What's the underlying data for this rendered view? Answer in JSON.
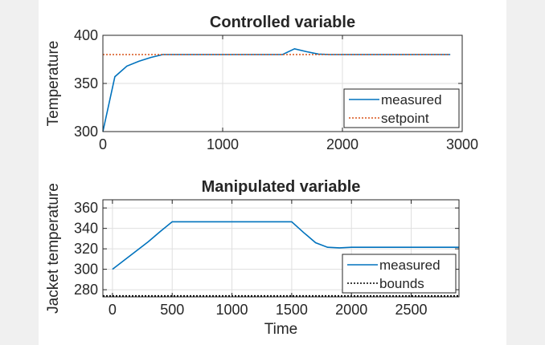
{
  "chart_data": [
    {
      "type": "line",
      "title": "Controlled variable",
      "xlabel": "",
      "ylabel": "Temperature",
      "xlim": [
        0,
        3000
      ],
      "ylim": [
        300,
        400
      ],
      "xticks": [
        0,
        1000,
        2000,
        3000
      ],
      "yticks": [
        300,
        350,
        400
      ],
      "grid": true,
      "legend_position": "bottom-right",
      "series": [
        {
          "name": "measured",
          "color": "#0072BD",
          "style": "solid",
          "x": [
            0,
            100,
            200,
            300,
            400,
            500,
            600,
            800,
            1000,
            1200,
            1400,
            1500,
            1600,
            1700,
            1800,
            1900,
            2000,
            2200,
            2400,
            2600,
            2900
          ],
          "y": [
            300,
            357,
            368,
            373,
            377,
            380,
            380,
            380,
            380,
            380,
            380,
            380,
            386,
            383,
            380.5,
            380,
            380,
            380,
            380,
            380,
            380
          ]
        },
        {
          "name": "setpoint",
          "color": "#D95319",
          "style": "dotted",
          "x": [
            0,
            2900
          ],
          "y": [
            380,
            380
          ]
        }
      ]
    },
    {
      "type": "line",
      "title": "Manipulated variable",
      "xlabel": "Time",
      "ylabel": "Jacket temperature",
      "xlim": [
        -80,
        2900
      ],
      "ylim": [
        273,
        368
      ],
      "xticks": [
        0,
        500,
        1000,
        1500,
        2000,
        2500
      ],
      "yticks": [
        280,
        300,
        320,
        340,
        360
      ],
      "grid": true,
      "legend_position": "bottom-right",
      "series": [
        {
          "name": "measured",
          "color": "#0072BD",
          "style": "solid",
          "x": [
            0,
            100,
            200,
            300,
            400,
            500,
            1000,
            1500,
            1600,
            1700,
            1800,
            1900,
            2000,
            2500,
            2900
          ],
          "y": [
            300,
            309,
            318,
            327,
            337,
            346.5,
            346.5,
            346.5,
            336,
            326,
            321.5,
            321,
            321.5,
            321.5,
            321.5
          ]
        },
        {
          "name": "bounds",
          "color": "#000000",
          "style": "dotted",
          "x": [
            -80,
            2900
          ],
          "y": [
            274,
            274
          ]
        }
      ]
    }
  ]
}
